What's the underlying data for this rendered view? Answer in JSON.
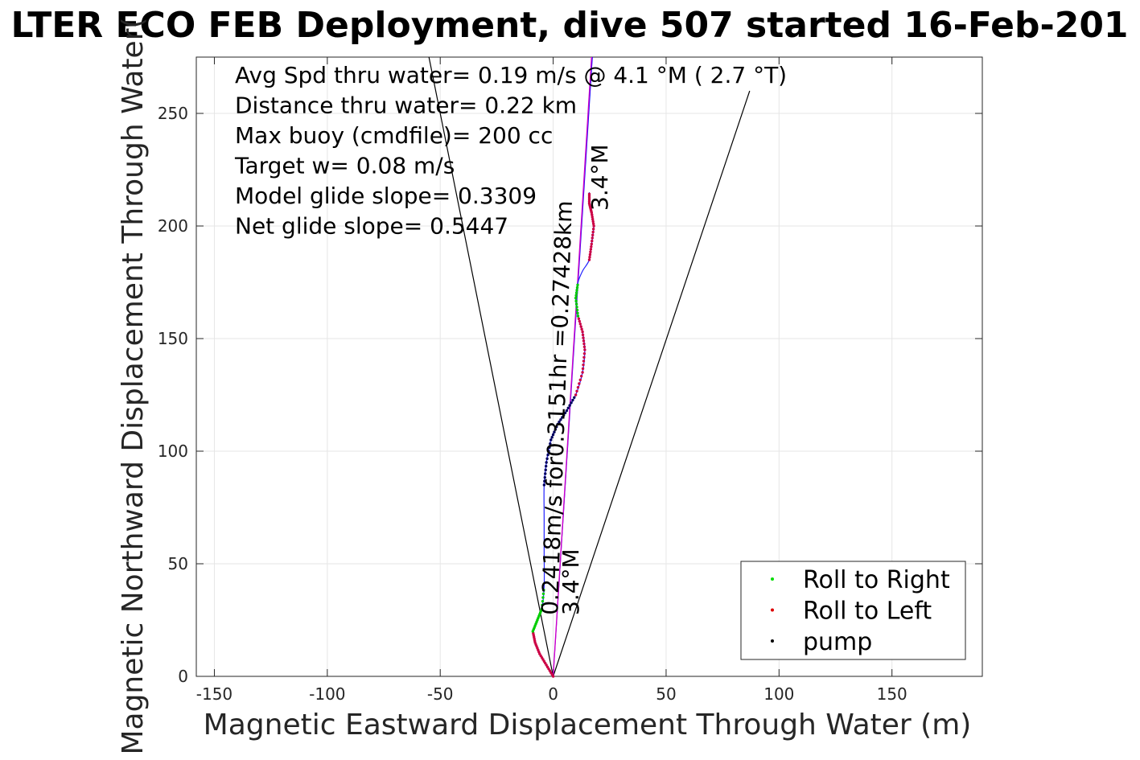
{
  "chart_data": {
    "type": "line",
    "title": "LTER ECO FEB Deployment, dive 507 started 16-Feb-201",
    "xlabel": "Magnetic Eastward Displacement Through Water (m)",
    "ylabel": "Magnetic Northward Displacement Through Water(",
    "xlim": [
      -158,
      190
    ],
    "ylim": [
      0,
      275
    ],
    "xticks": [
      -150,
      -100,
      -50,
      0,
      50,
      100,
      150
    ],
    "yticks": [
      0,
      50,
      100,
      150,
      200,
      250
    ],
    "grid": true,
    "annotations": [
      "Avg Spd thru water=  0.19 m/s @   4.1 °M (  2.7 °T)",
      "Distance thru water=  0.22 km",
      "Max buoy (cmdfile)= 200 cc",
      "Target w= 0.08 m/s",
      "Model glide slope= 0.3309",
      "Net glide slope= 0.5447"
    ],
    "heading_label_start": "3.4°M",
    "heading_label_end": "3.4°M",
    "track_label": "0.2418m/s for0.3151hr =0.27428km",
    "legend": {
      "position": "bottom-right",
      "entries": [
        {
          "label": "Roll to Right",
          "color": "#00dd00"
        },
        {
          "label": "Roll to Left",
          "color": "#dd0000"
        },
        {
          "label": "pump",
          "color": "#000000"
        }
      ]
    },
    "track": [
      [
        0,
        0
      ],
      [
        -3,
        5
      ],
      [
        -6,
        10
      ],
      [
        -8,
        15
      ],
      [
        -9,
        20
      ],
      [
        -7,
        25
      ],
      [
        -5,
        30
      ],
      [
        -4,
        40
      ],
      [
        -4,
        55
      ],
      [
        -4,
        70
      ],
      [
        -4,
        85
      ],
      [
        -3,
        95
      ],
      [
        -1,
        105
      ],
      [
        2,
        112
      ],
      [
        6,
        118
      ],
      [
        10,
        125
      ],
      [
        13,
        135
      ],
      [
        14,
        145
      ],
      [
        13,
        153
      ],
      [
        11,
        160
      ],
      [
        10,
        168
      ],
      [
        11,
        175
      ],
      [
        13,
        180
      ],
      [
        16,
        185
      ],
      [
        17,
        192
      ],
      [
        18,
        200
      ],
      [
        17,
        206
      ],
      [
        16,
        210
      ],
      [
        16,
        215
      ]
    ],
    "segments": [
      {
        "kind": "roll_left",
        "color": "#cc0044",
        "start": 0,
        "end": 4
      },
      {
        "kind": "roll_right",
        "color": "#00cc00",
        "start": 4,
        "end": 7
      },
      {
        "kind": "pump",
        "color": "#00005a",
        "start": 10,
        "end": 15
      },
      {
        "kind": "roll_left",
        "color": "#cc0044",
        "start": 15,
        "end": 19
      },
      {
        "kind": "roll_right",
        "color": "#00cc00",
        "start": 19,
        "end": 21
      },
      {
        "kind": "roll_left",
        "color": "#cc0044",
        "start": 23,
        "end": 28
      }
    ],
    "net_vector": {
      "from": [
        0,
        0
      ],
      "to": [
        17,
        275
      ],
      "color": "#cc00cc"
    },
    "heading_vector": {
      "from": [
        0,
        0
      ],
      "to": [
        17,
        275
      ],
      "color": "#0000ff"
    },
    "cone_lines": [
      {
        "from": [
          0,
          0
        ],
        "to": [
          -55,
          275
        ]
      },
      {
        "from": [
          0,
          0
        ],
        "to": [
          87,
          260
        ]
      }
    ]
  }
}
